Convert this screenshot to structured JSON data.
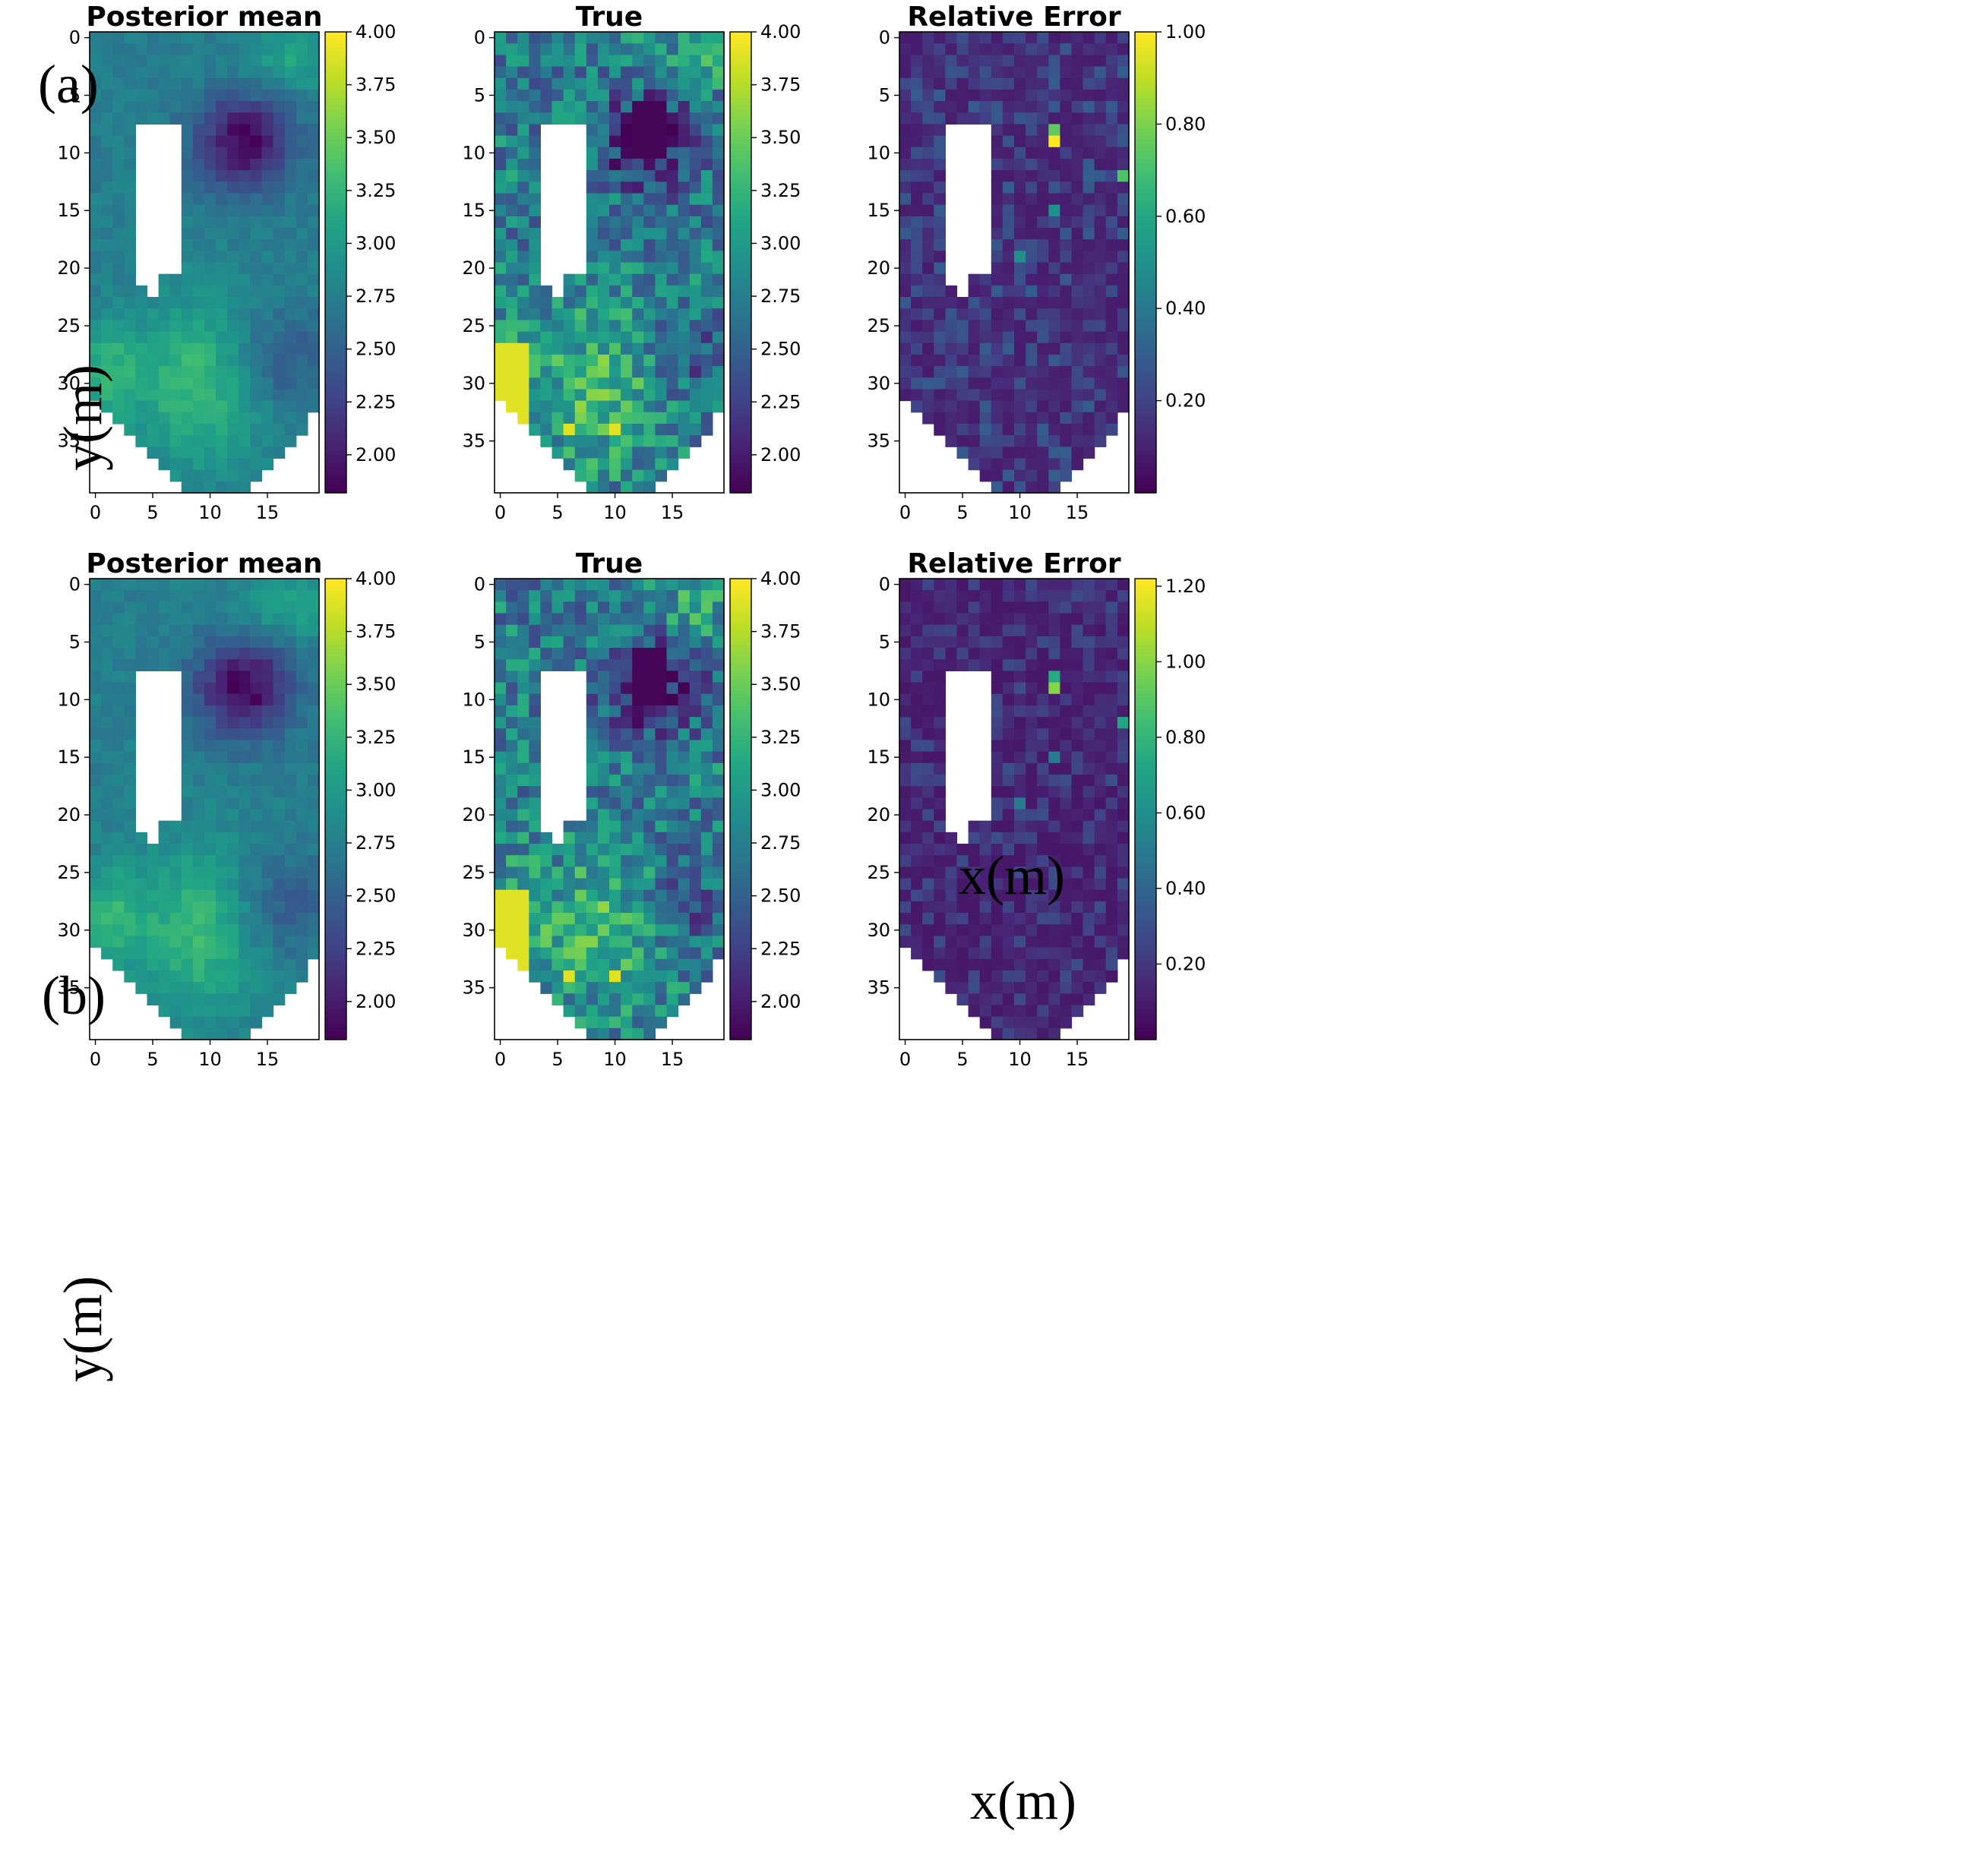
{
  "figure": {
    "rows": [
      {
        "panel_label": "(a)",
        "xlabel": "x(m)",
        "ylabel": "y(m)"
      },
      {
        "panel_label": "(b)",
        "xlabel": "x(m)",
        "ylabel": "y(m)"
      }
    ]
  },
  "chart_data": [
    {
      "id": "a-posterior",
      "type": "heatmap",
      "title": "Posterior mean",
      "row": "(a)",
      "colormap": "viridis",
      "x_ticks": [
        0,
        5,
        10,
        15
      ],
      "y_ticks": [
        0,
        5,
        10,
        15,
        20,
        25,
        30,
        35
      ],
      "xlim": [
        -0.5,
        19.5
      ],
      "ylim": [
        39.5,
        -0.5
      ],
      "colorbar": {
        "vmin": 1.82,
        "vmax": 4.0,
        "ticks": [
          "2.00",
          "2.25",
          "2.50",
          "2.75",
          "3.00",
          "3.25",
          "3.50",
          "3.75",
          "4.00"
        ]
      }
    },
    {
      "id": "a-true",
      "type": "heatmap",
      "title": "True",
      "row": "(a)",
      "colormap": "viridis",
      "x_ticks": [
        0,
        5,
        10,
        15
      ],
      "y_ticks": [
        0,
        5,
        10,
        15,
        20,
        25,
        30,
        35
      ],
      "xlim": [
        -0.5,
        19.5
      ],
      "ylim": [
        39.5,
        -0.5
      ],
      "colorbar": {
        "vmin": 1.82,
        "vmax": 4.0,
        "ticks": [
          "2.00",
          "2.25",
          "2.50",
          "2.75",
          "3.00",
          "3.25",
          "3.50",
          "3.75",
          "4.00"
        ]
      }
    },
    {
      "id": "a-error",
      "type": "heatmap",
      "title": "Relative Error",
      "row": "(a)",
      "colormap": "viridis",
      "x_ticks": [
        0,
        5,
        10,
        15
      ],
      "y_ticks": [
        0,
        5,
        10,
        15,
        20,
        25,
        30,
        35
      ],
      "xlim": [
        -0.5,
        19.5
      ],
      "ylim": [
        39.5,
        -0.5
      ],
      "colorbar": {
        "vmin": 0.0,
        "vmax": 1.0,
        "ticks": [
          "0.20",
          "0.40",
          "0.60",
          "0.80",
          "1.00"
        ]
      }
    },
    {
      "id": "b-posterior",
      "type": "heatmap",
      "title": "Posterior mean",
      "row": "(b)",
      "colormap": "viridis",
      "x_ticks": [
        0,
        5,
        10,
        15
      ],
      "y_ticks": [
        0,
        5,
        10,
        15,
        20,
        25,
        30,
        35
      ],
      "xlim": [
        -0.5,
        19.5
      ],
      "ylim": [
        39.5,
        -0.5
      ],
      "colorbar": {
        "vmin": 1.82,
        "vmax": 4.0,
        "ticks": [
          "2.00",
          "2.25",
          "2.50",
          "2.75",
          "3.00",
          "3.25",
          "3.50",
          "3.75",
          "4.00"
        ]
      }
    },
    {
      "id": "b-true",
      "type": "heatmap",
      "title": "True",
      "row": "(b)",
      "colormap": "viridis",
      "x_ticks": [
        0,
        5,
        10,
        15
      ],
      "y_ticks": [
        0,
        5,
        10,
        15,
        20,
        25,
        30,
        35
      ],
      "xlim": [
        -0.5,
        19.5
      ],
      "ylim": [
        39.5,
        -0.5
      ],
      "colorbar": {
        "vmin": 1.82,
        "vmax": 4.0,
        "ticks": [
          "2.00",
          "2.25",
          "2.50",
          "2.75",
          "3.00",
          "3.25",
          "3.50",
          "3.75",
          "4.00"
        ]
      }
    },
    {
      "id": "b-error",
      "type": "heatmap",
      "title": "Relative Error",
      "row": "(b)",
      "colormap": "viridis",
      "x_ticks": [
        0,
        5,
        10,
        15
      ],
      "y_ticks": [
        0,
        5,
        10,
        15,
        20,
        25,
        30,
        35
      ],
      "xlim": [
        -0.5,
        19.5
      ],
      "ylim": [
        39.5,
        -0.5
      ],
      "colorbar": {
        "vmin": 0.0,
        "vmax": 1.22,
        "ticks": [
          "0.20",
          "0.40",
          "0.60",
          "0.80",
          "1.00",
          "1.20"
        ]
      }
    }
  ]
}
